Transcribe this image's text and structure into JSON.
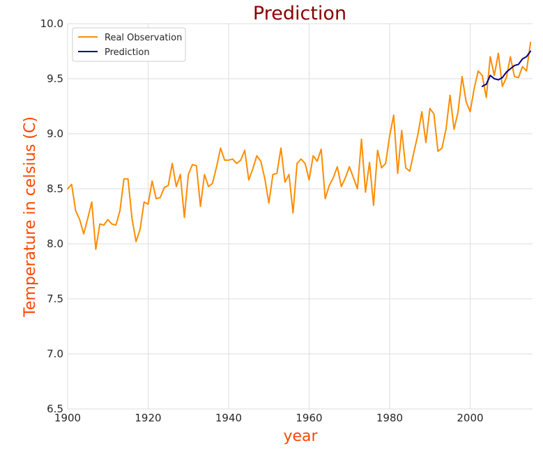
{
  "chart_data": {
    "type": "line",
    "title": "Prediction",
    "xlabel": "year",
    "ylabel": "Temperature in celsius (C)",
    "xlim": [
      1900,
      2015.5
    ],
    "ylim": [
      6.5,
      10.0
    ],
    "x_ticks": [
      "1900",
      "1920",
      "1940",
      "1960",
      "1980",
      "2000"
    ],
    "y_ticks": [
      "6.5",
      "7.0",
      "7.5",
      "8.0",
      "8.5",
      "9.0",
      "9.5",
      "10.0"
    ],
    "grid": true,
    "legend_position": "top-left",
    "colors": {
      "title": "#8B0000",
      "axis_title": "#FF4500",
      "observation": "#FF8C00",
      "prediction": "#000080",
      "grid": "#dddddd"
    },
    "series": [
      {
        "name": "Real Observation",
        "x": [
          1900,
          1901,
          1902,
          1903,
          1904,
          1905,
          1906,
          1907,
          1908,
          1909,
          1910,
          1911,
          1912,
          1913,
          1914,
          1915,
          1916,
          1917,
          1918,
          1919,
          1920,
          1921,
          1922,
          1923,
          1924,
          1925,
          1926,
          1927,
          1928,
          1929,
          1930,
          1931,
          1932,
          1933,
          1934,
          1935,
          1936,
          1937,
          1938,
          1939,
          1940,
          1941,
          1942,
          1943,
          1944,
          1945,
          1946,
          1947,
          1948,
          1949,
          1950,
          1951,
          1952,
          1953,
          1954,
          1955,
          1956,
          1957,
          1958,
          1959,
          1960,
          1961,
          1962,
          1963,
          1964,
          1965,
          1966,
          1967,
          1968,
          1969,
          1970,
          1971,
          1972,
          1973,
          1974,
          1975,
          1976,
          1977,
          1978,
          1979,
          1980,
          1981,
          1982,
          1983,
          1984,
          1985,
          1986,
          1987,
          1988,
          1989,
          1990,
          1991,
          1992,
          1993,
          1994,
          1995,
          1996,
          1997,
          1998,
          1999,
          2000,
          2001,
          2002,
          2003,
          2004,
          2005,
          2006,
          2007,
          2008,
          2009,
          2010,
          2011,
          2012,
          2013,
          2014,
          2015
        ],
        "values": [
          8.5,
          8.54,
          8.3,
          8.22,
          8.09,
          8.23,
          8.38,
          7.95,
          8.18,
          8.17,
          8.22,
          8.18,
          8.17,
          8.3,
          8.59,
          8.59,
          8.23,
          8.02,
          8.13,
          8.38,
          8.36,
          8.57,
          8.41,
          8.42,
          8.51,
          8.53,
          8.73,
          8.52,
          8.63,
          8.24,
          8.63,
          8.72,
          8.71,
          8.34,
          8.63,
          8.52,
          8.55,
          8.7,
          8.87,
          8.76,
          8.76,
          8.77,
          8.73,
          8.76,
          8.85,
          8.58,
          8.68,
          8.8,
          8.75,
          8.59,
          8.37,
          8.63,
          8.64,
          8.87,
          8.56,
          8.63,
          8.28,
          8.73,
          8.77,
          8.73,
          8.58,
          8.8,
          8.75,
          8.86,
          8.41,
          8.53,
          8.6,
          8.7,
          8.52,
          8.6,
          8.7,
          8.6,
          8.5,
          8.95,
          8.47,
          8.74,
          8.35,
          8.85,
          8.69,
          8.73,
          8.98,
          9.17,
          8.64,
          9.03,
          8.69,
          8.66,
          8.83,
          8.99,
          9.2,
          8.92,
          9.23,
          9.18,
          8.84,
          8.87,
          9.04,
          9.35,
          9.04,
          9.2,
          9.52,
          9.29,
          9.2,
          9.41,
          9.57,
          9.53,
          9.33,
          9.7,
          9.53,
          9.73,
          9.43,
          9.51,
          9.7,
          9.52,
          9.51,
          9.61,
          9.57,
          9.83
        ]
      },
      {
        "name": "Prediction",
        "x": [
          2003,
          2004,
          2005,
          2006,
          2007,
          2008,
          2009,
          2010,
          2011,
          2012,
          2013,
          2014,
          2015
        ],
        "values": [
          9.43,
          9.45,
          9.53,
          9.5,
          9.49,
          9.51,
          9.56,
          9.59,
          9.62,
          9.63,
          9.68,
          9.7,
          9.75
        ]
      }
    ]
  }
}
